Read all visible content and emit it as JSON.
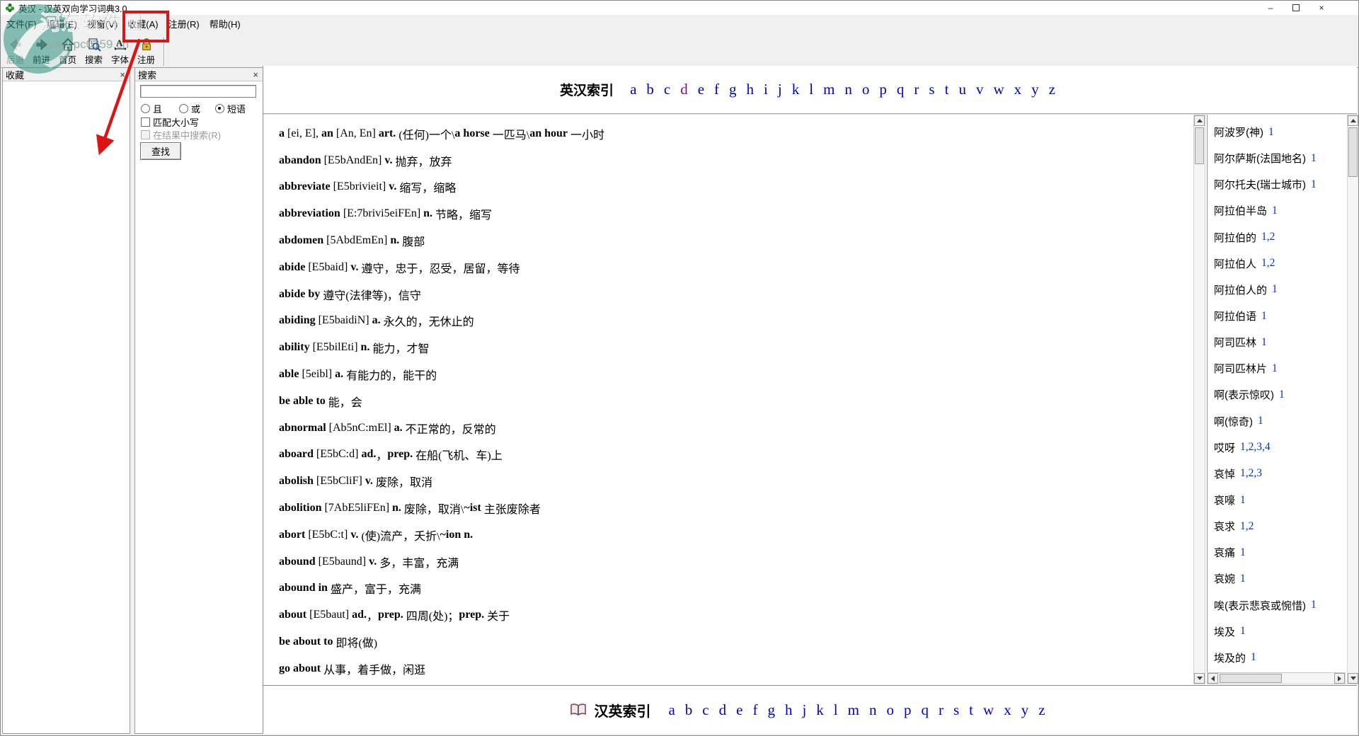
{
  "window": {
    "title": "英汉 - 汉英双向学习词典3.0",
    "minimize_glyph": "–",
    "close_glyph": "×"
  },
  "menu": {
    "items": [
      "文件(F)",
      "编辑(E)",
      "视窗(V)",
      "收藏(A)",
      "注册(R)",
      "帮助(H)"
    ],
    "item_keys": [
      "file",
      "edit",
      "view",
      "favorites",
      "register",
      "help"
    ],
    "highlighted_item": "收藏(A)"
  },
  "toolbar": {
    "buttons": [
      {
        "label": "后退",
        "icon": "back-arrow-icon",
        "disabled": true
      },
      {
        "label": "前进",
        "icon": "forward-arrow-icon",
        "disabled": false
      },
      {
        "label": "首页",
        "icon": "home-icon",
        "disabled": false
      },
      {
        "label": "搜索",
        "icon": "search-icon",
        "disabled": false
      },
      {
        "label": "字体",
        "icon": "font-icon",
        "disabled": false
      },
      {
        "label": "注册",
        "icon": "lock-icon",
        "disabled": false
      }
    ]
  },
  "favorites_panel": {
    "title": "收藏",
    "close_glyph": "×"
  },
  "search_panel": {
    "title": "搜索",
    "close_glyph": "×",
    "input_value": "",
    "radio_options": [
      {
        "label": "且",
        "selected": false
      },
      {
        "label": "或",
        "selected": false
      },
      {
        "label": "短语",
        "selected": true
      }
    ],
    "checkbox_options": [
      {
        "label": "匹配大小写",
        "checked": false,
        "disabled": false
      },
      {
        "label": "在结果中搜索(R)",
        "checked": false,
        "disabled": true
      }
    ],
    "find_button_label": "查找"
  },
  "english_index": {
    "title": "英汉索引",
    "letters": [
      "a",
      "b",
      "c",
      "d",
      "e",
      "f",
      "g",
      "h",
      "i",
      "j",
      "k",
      "l",
      "m",
      "n",
      "o",
      "p",
      "q",
      "r",
      "s",
      "t",
      "u",
      "v",
      "w",
      "x",
      "y",
      "z"
    ],
    "visited_letter": "d"
  },
  "entries": [
    [
      {
        "t": "a",
        "b": 1
      },
      {
        "t": " [ei, E], ",
        "b": 0
      },
      {
        "t": "an",
        "b": 1
      },
      {
        "t": " [An, En] ",
        "b": 0
      },
      {
        "t": "art.",
        "b": 1
      },
      {
        "t": " (任何)一个\\",
        "b": 0
      },
      {
        "t": "a horse",
        "b": 1
      },
      {
        "t": " 一匹马\\",
        "b": 0
      },
      {
        "t": "an hour",
        "b": 1
      },
      {
        "t": " 一小时",
        "b": 0
      }
    ],
    [
      {
        "t": "abandon",
        "b": 1
      },
      {
        "t": " [E5bAndEn] ",
        "b": 0
      },
      {
        "t": "v.",
        "b": 1
      },
      {
        "t": " 抛弃，放弃",
        "b": 0
      }
    ],
    [
      {
        "t": "abbreviate",
        "b": 1
      },
      {
        "t": " [E5brivieit] ",
        "b": 0
      },
      {
        "t": "v.",
        "b": 1
      },
      {
        "t": " 缩写，缩略",
        "b": 0
      }
    ],
    [
      {
        "t": "abbreviation",
        "b": 1
      },
      {
        "t": " [E:7brivi5eiFEn] ",
        "b": 0
      },
      {
        "t": "n.",
        "b": 1
      },
      {
        "t": " 节略，缩写",
        "b": 0
      }
    ],
    [
      {
        "t": "abdomen",
        "b": 1
      },
      {
        "t": " [5AbdEmEn] ",
        "b": 0
      },
      {
        "t": "n.",
        "b": 1
      },
      {
        "t": " 腹部",
        "b": 0
      }
    ],
    [
      {
        "t": "abide",
        "b": 1
      },
      {
        "t": " [E5baid] ",
        "b": 0
      },
      {
        "t": "v.",
        "b": 1
      },
      {
        "t": " 遵守，忠于，忍受，居留，等待",
        "b": 0
      }
    ],
    [
      {
        "t": "abide by",
        "b": 1
      },
      {
        "t": " 遵守(法律等)，信守",
        "b": 0
      }
    ],
    [
      {
        "t": "abiding",
        "b": 1
      },
      {
        "t": " [E5baidiN] ",
        "b": 0
      },
      {
        "t": "a.",
        "b": 1
      },
      {
        "t": " 永久的，无休止的",
        "b": 0
      }
    ],
    [
      {
        "t": "ability",
        "b": 1
      },
      {
        "t": " [E5bilEti] ",
        "b": 0
      },
      {
        "t": "n.",
        "b": 1
      },
      {
        "t": " 能力，才智",
        "b": 0
      }
    ],
    [
      {
        "t": "able",
        "b": 1
      },
      {
        "t": " [5eibl] ",
        "b": 0
      },
      {
        "t": "a.",
        "b": 1
      },
      {
        "t": " 有能力的，能干的",
        "b": 0
      }
    ],
    [
      {
        "t": "be able to",
        "b": 1
      },
      {
        "t": " 能，会",
        "b": 0
      }
    ],
    [
      {
        "t": "abnormal",
        "b": 1
      },
      {
        "t": " [Ab5nC:mEl] ",
        "b": 0
      },
      {
        "t": "a.",
        "b": 1
      },
      {
        "t": " 不正常的，反常的",
        "b": 0
      }
    ],
    [
      {
        "t": "aboard",
        "b": 1
      },
      {
        "t": " [E5bC:d] ",
        "b": 0
      },
      {
        "t": "ad.",
        "b": 1
      },
      {
        "t": "，",
        "b": 0
      },
      {
        "t": "prep.",
        "b": 1
      },
      {
        "t": " 在船(飞机、车)上",
        "b": 0
      }
    ],
    [
      {
        "t": "abolish",
        "b": 1
      },
      {
        "t": " [E5bCliF] ",
        "b": 0
      },
      {
        "t": "v.",
        "b": 1
      },
      {
        "t": " 废除，取消",
        "b": 0
      }
    ],
    [
      {
        "t": "abolition",
        "b": 1
      },
      {
        "t": " [7AbE5liFEn] ",
        "b": 0
      },
      {
        "t": "n.",
        "b": 1
      },
      {
        "t": " 废除，取消\\",
        "b": 0
      },
      {
        "t": "~ist",
        "b": 1
      },
      {
        "t": " 主张废除者",
        "b": 0
      }
    ],
    [
      {
        "t": "abort",
        "b": 1
      },
      {
        "t": " [E5bC:t] ",
        "b": 0
      },
      {
        "t": "v.",
        "b": 1
      },
      {
        "t": " (使)流产，夭折\\",
        "b": 0
      },
      {
        "t": "~ion n.",
        "b": 1
      }
    ],
    [
      {
        "t": "abound",
        "b": 1
      },
      {
        "t": " [E5baund] ",
        "b": 0
      },
      {
        "t": "v.",
        "b": 1
      },
      {
        "t": " 多，丰富，充满",
        "b": 0
      }
    ],
    [
      {
        "t": "abound in",
        "b": 1
      },
      {
        "t": " 盛产，富于，充满",
        "b": 0
      }
    ],
    [
      {
        "t": "about",
        "b": 1
      },
      {
        "t": " [E5baut] ",
        "b": 0
      },
      {
        "t": "ad.",
        "b": 1
      },
      {
        "t": "，",
        "b": 0
      },
      {
        "t": "prep.",
        "b": 1
      },
      {
        "t": " 四周(处)；",
        "b": 0
      },
      {
        "t": "prep.",
        "b": 1
      },
      {
        "t": " 关于",
        "b": 0
      }
    ],
    [
      {
        "t": "be about to",
        "b": 1
      },
      {
        "t": " 即将(做)",
        "b": 0
      }
    ],
    [
      {
        "t": "go about",
        "b": 1
      },
      {
        "t": " 从事，着手做，闲逛",
        "b": 0
      }
    ]
  ],
  "chinese_words": [
    {
      "word": "阿波罗(神)",
      "refs": [
        "1"
      ]
    },
    {
      "word": "阿尔萨斯(法国地名)",
      "refs": [
        "1"
      ]
    },
    {
      "word": "阿尔托夫(瑞士城市)",
      "refs": [
        "1"
      ]
    },
    {
      "word": "阿拉伯半岛",
      "refs": [
        "1"
      ]
    },
    {
      "word": "阿拉伯的",
      "refs": [
        "1",
        "2"
      ]
    },
    {
      "word": "阿拉伯人",
      "refs": [
        "1",
        "2"
      ]
    },
    {
      "word": "阿拉伯人的",
      "refs": [
        "1"
      ]
    },
    {
      "word": "阿拉伯语",
      "refs": [
        "1"
      ]
    },
    {
      "word": "阿司匹林",
      "refs": [
        "1"
      ]
    },
    {
      "word": "阿司匹林片",
      "refs": [
        "1"
      ]
    },
    {
      "word": "啊(表示惊叹)",
      "refs": [
        "1"
      ]
    },
    {
      "word": "啊(惊奇)",
      "refs": [
        "1"
      ]
    },
    {
      "word": "哎呀",
      "refs": [
        "1",
        "2",
        "3",
        "4"
      ]
    },
    {
      "word": "哀悼",
      "refs": [
        "1",
        "2",
        "3"
      ]
    },
    {
      "word": "哀嚎",
      "refs": [
        "1"
      ]
    },
    {
      "word": "哀求",
      "refs": [
        "1",
        "2"
      ]
    },
    {
      "word": "哀痛",
      "refs": [
        "1"
      ]
    },
    {
      "word": "哀婉",
      "refs": [
        "1"
      ]
    },
    {
      "word": "唉(表示悲哀或惋惜)",
      "refs": [
        "1"
      ]
    },
    {
      "word": "埃及",
      "refs": [
        "1"
      ]
    },
    {
      "word": "埃及的",
      "refs": [
        "1"
      ]
    }
  ],
  "chinese_index": {
    "title": "汉英索引",
    "book_icon": "book-icon",
    "letters": [
      "a",
      "b",
      "c",
      "d",
      "e",
      "f",
      "g",
      "h",
      "j",
      "k",
      "l",
      "m",
      "n",
      "o",
      "p",
      "q",
      "r",
      "s",
      "t",
      "w",
      "x",
      "y",
      "z"
    ]
  },
  "watermark": {
    "name": "河东软件园",
    "url": "www.pc0359.cn"
  },
  "colors": {
    "link_blue": "#0000cd",
    "visited_purple": "#7b117b",
    "ref_blue": "#0033cc",
    "annotation_red": "#de1414",
    "watermark_teal": "#2b8f7f"
  }
}
